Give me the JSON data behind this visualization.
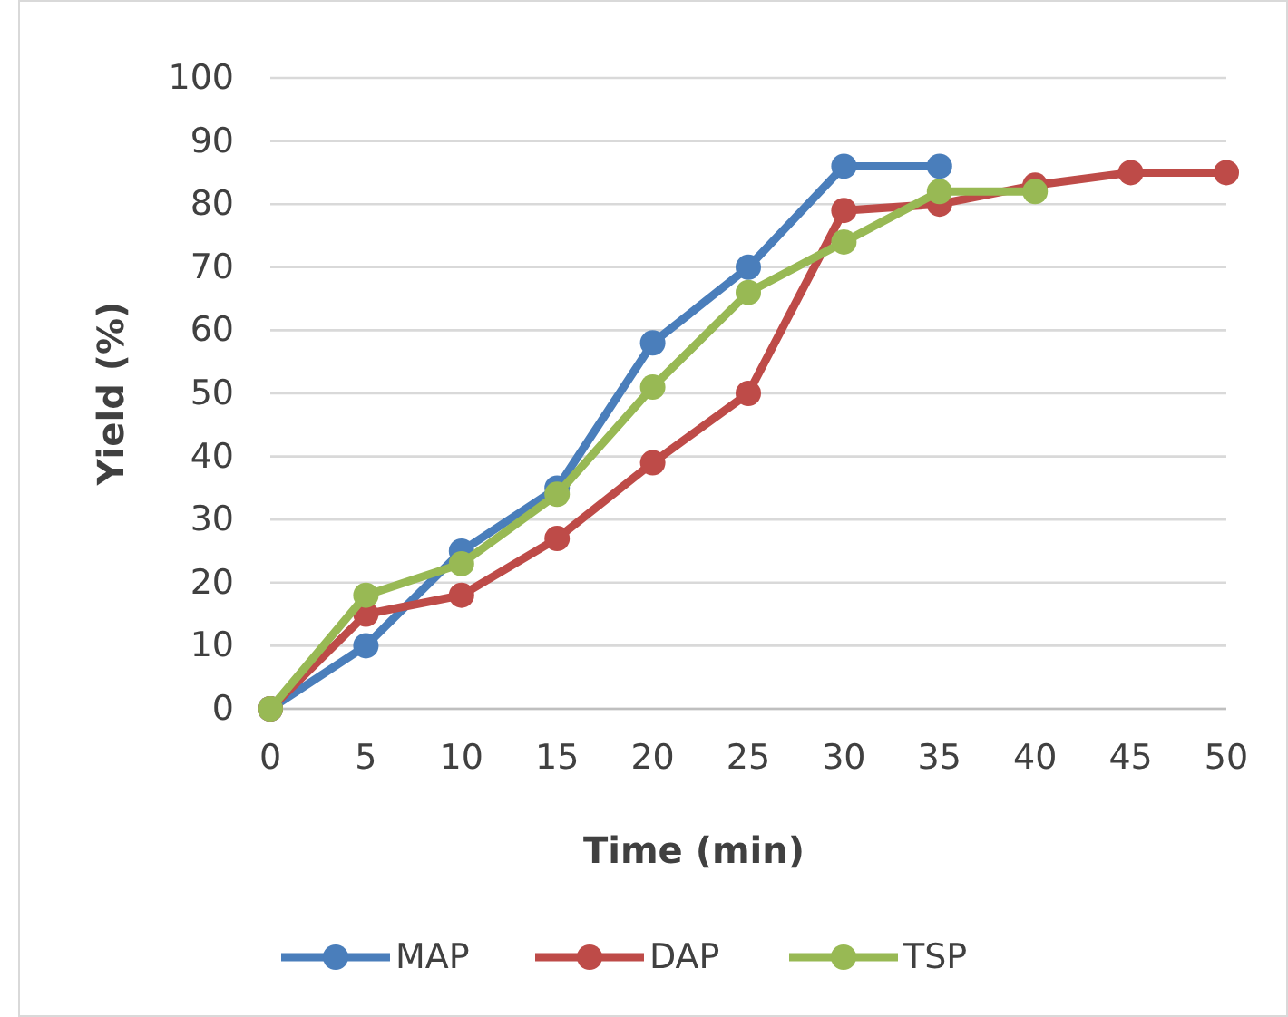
{
  "chart_data": {
    "type": "line",
    "xlabel": "Time (min)",
    "ylabel": "Yield (%)",
    "xlim": [
      0,
      50
    ],
    "xticks": [
      0,
      5,
      10,
      15,
      20,
      25,
      30,
      35,
      40,
      45,
      50
    ],
    "ylim": [
      0,
      100
    ],
    "yticks": [
      0,
      10,
      20,
      30,
      40,
      50,
      60,
      70,
      80,
      90,
      100
    ],
    "grid": "y",
    "legend": "bottom",
    "marker": "circle",
    "line_style": "solid",
    "series": [
      {
        "name": "MAP",
        "color": "#4a7ebb",
        "x": [
          0,
          5,
          10,
          15,
          20,
          25,
          30,
          35
        ],
        "values": [
          0,
          10,
          25,
          35,
          58,
          70,
          86,
          86
        ]
      },
      {
        "name": "DAP",
        "color": "#be4b48",
        "x": [
          0,
          5,
          10,
          15,
          20,
          25,
          30,
          35,
          40,
          45,
          50
        ],
        "values": [
          0,
          15,
          18,
          27,
          39,
          50,
          79,
          80,
          83,
          85,
          85
        ]
      },
      {
        "name": "TSP",
        "color": "#98b954",
        "x": [
          0,
          5,
          10,
          15,
          20,
          25,
          30,
          35,
          40
        ],
        "values": [
          0,
          18,
          23,
          34,
          51,
          66,
          74,
          82,
          82
        ]
      }
    ]
  }
}
